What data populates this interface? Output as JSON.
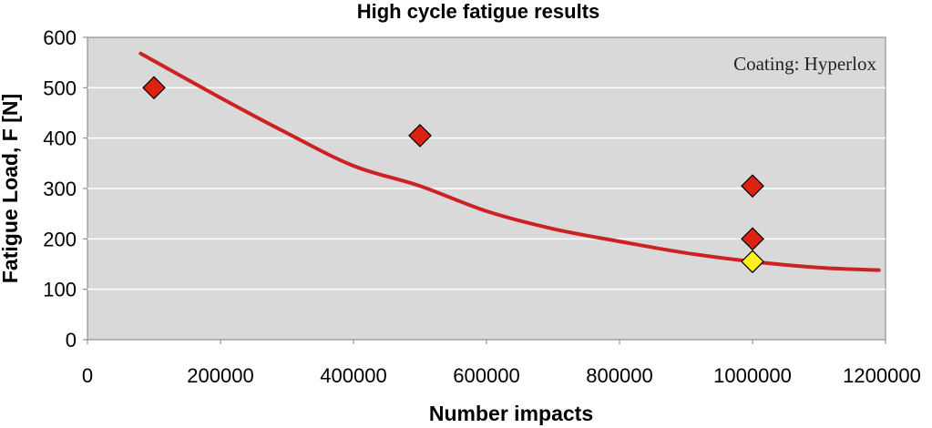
{
  "chart_data": {
    "type": "scatter",
    "title": "High cycle fatigue results",
    "xlabel": "Number impacts",
    "ylabel": "Fatigue Load, F [N]",
    "xlim": [
      0,
      1200000
    ],
    "ylim": [
      0,
      600
    ],
    "x_ticks": [
      "0",
      "200000",
      "400000",
      "600000",
      "800000",
      "1000000",
      "1200000"
    ],
    "y_ticks": [
      "0",
      "100",
      "200",
      "300",
      "400",
      "500",
      "600"
    ],
    "grid": "horizontal",
    "annotation": "Coating: Hyperlox",
    "colors": {
      "plot_background": "#d9d9d9",
      "gridline": "#ffffff",
      "trend": "#cc2222",
      "marker_red": "#dd2211",
      "marker_yellow": "#ffee22"
    },
    "series": [
      {
        "marker": "diamond",
        "color": "#dd2211",
        "points": [
          {
            "x": 100000,
            "y": 500
          },
          {
            "x": 500000,
            "y": 405
          },
          {
            "x": 1000000,
            "y": 305
          },
          {
            "x": 1000000,
            "y": 200
          }
        ]
      },
      {
        "marker": "diamond",
        "color": "#ffee22",
        "points": [
          {
            "x": 1000000,
            "y": 155
          }
        ]
      }
    ],
    "trendline": {
      "type": "polynomial",
      "color": "#cc2222",
      "points": [
        {
          "x": 80000,
          "y": 568
        },
        {
          "x": 200000,
          "y": 480
        },
        {
          "x": 300000,
          "y": 410
        },
        {
          "x": 400000,
          "y": 345
        },
        {
          "x": 500000,
          "y": 305
        },
        {
          "x": 600000,
          "y": 255
        },
        {
          "x": 700000,
          "y": 220
        },
        {
          "x": 800000,
          "y": 195
        },
        {
          "x": 900000,
          "y": 172
        },
        {
          "x": 1000000,
          "y": 155
        },
        {
          "x": 1100000,
          "y": 143
        },
        {
          "x": 1190000,
          "y": 138
        }
      ]
    }
  }
}
